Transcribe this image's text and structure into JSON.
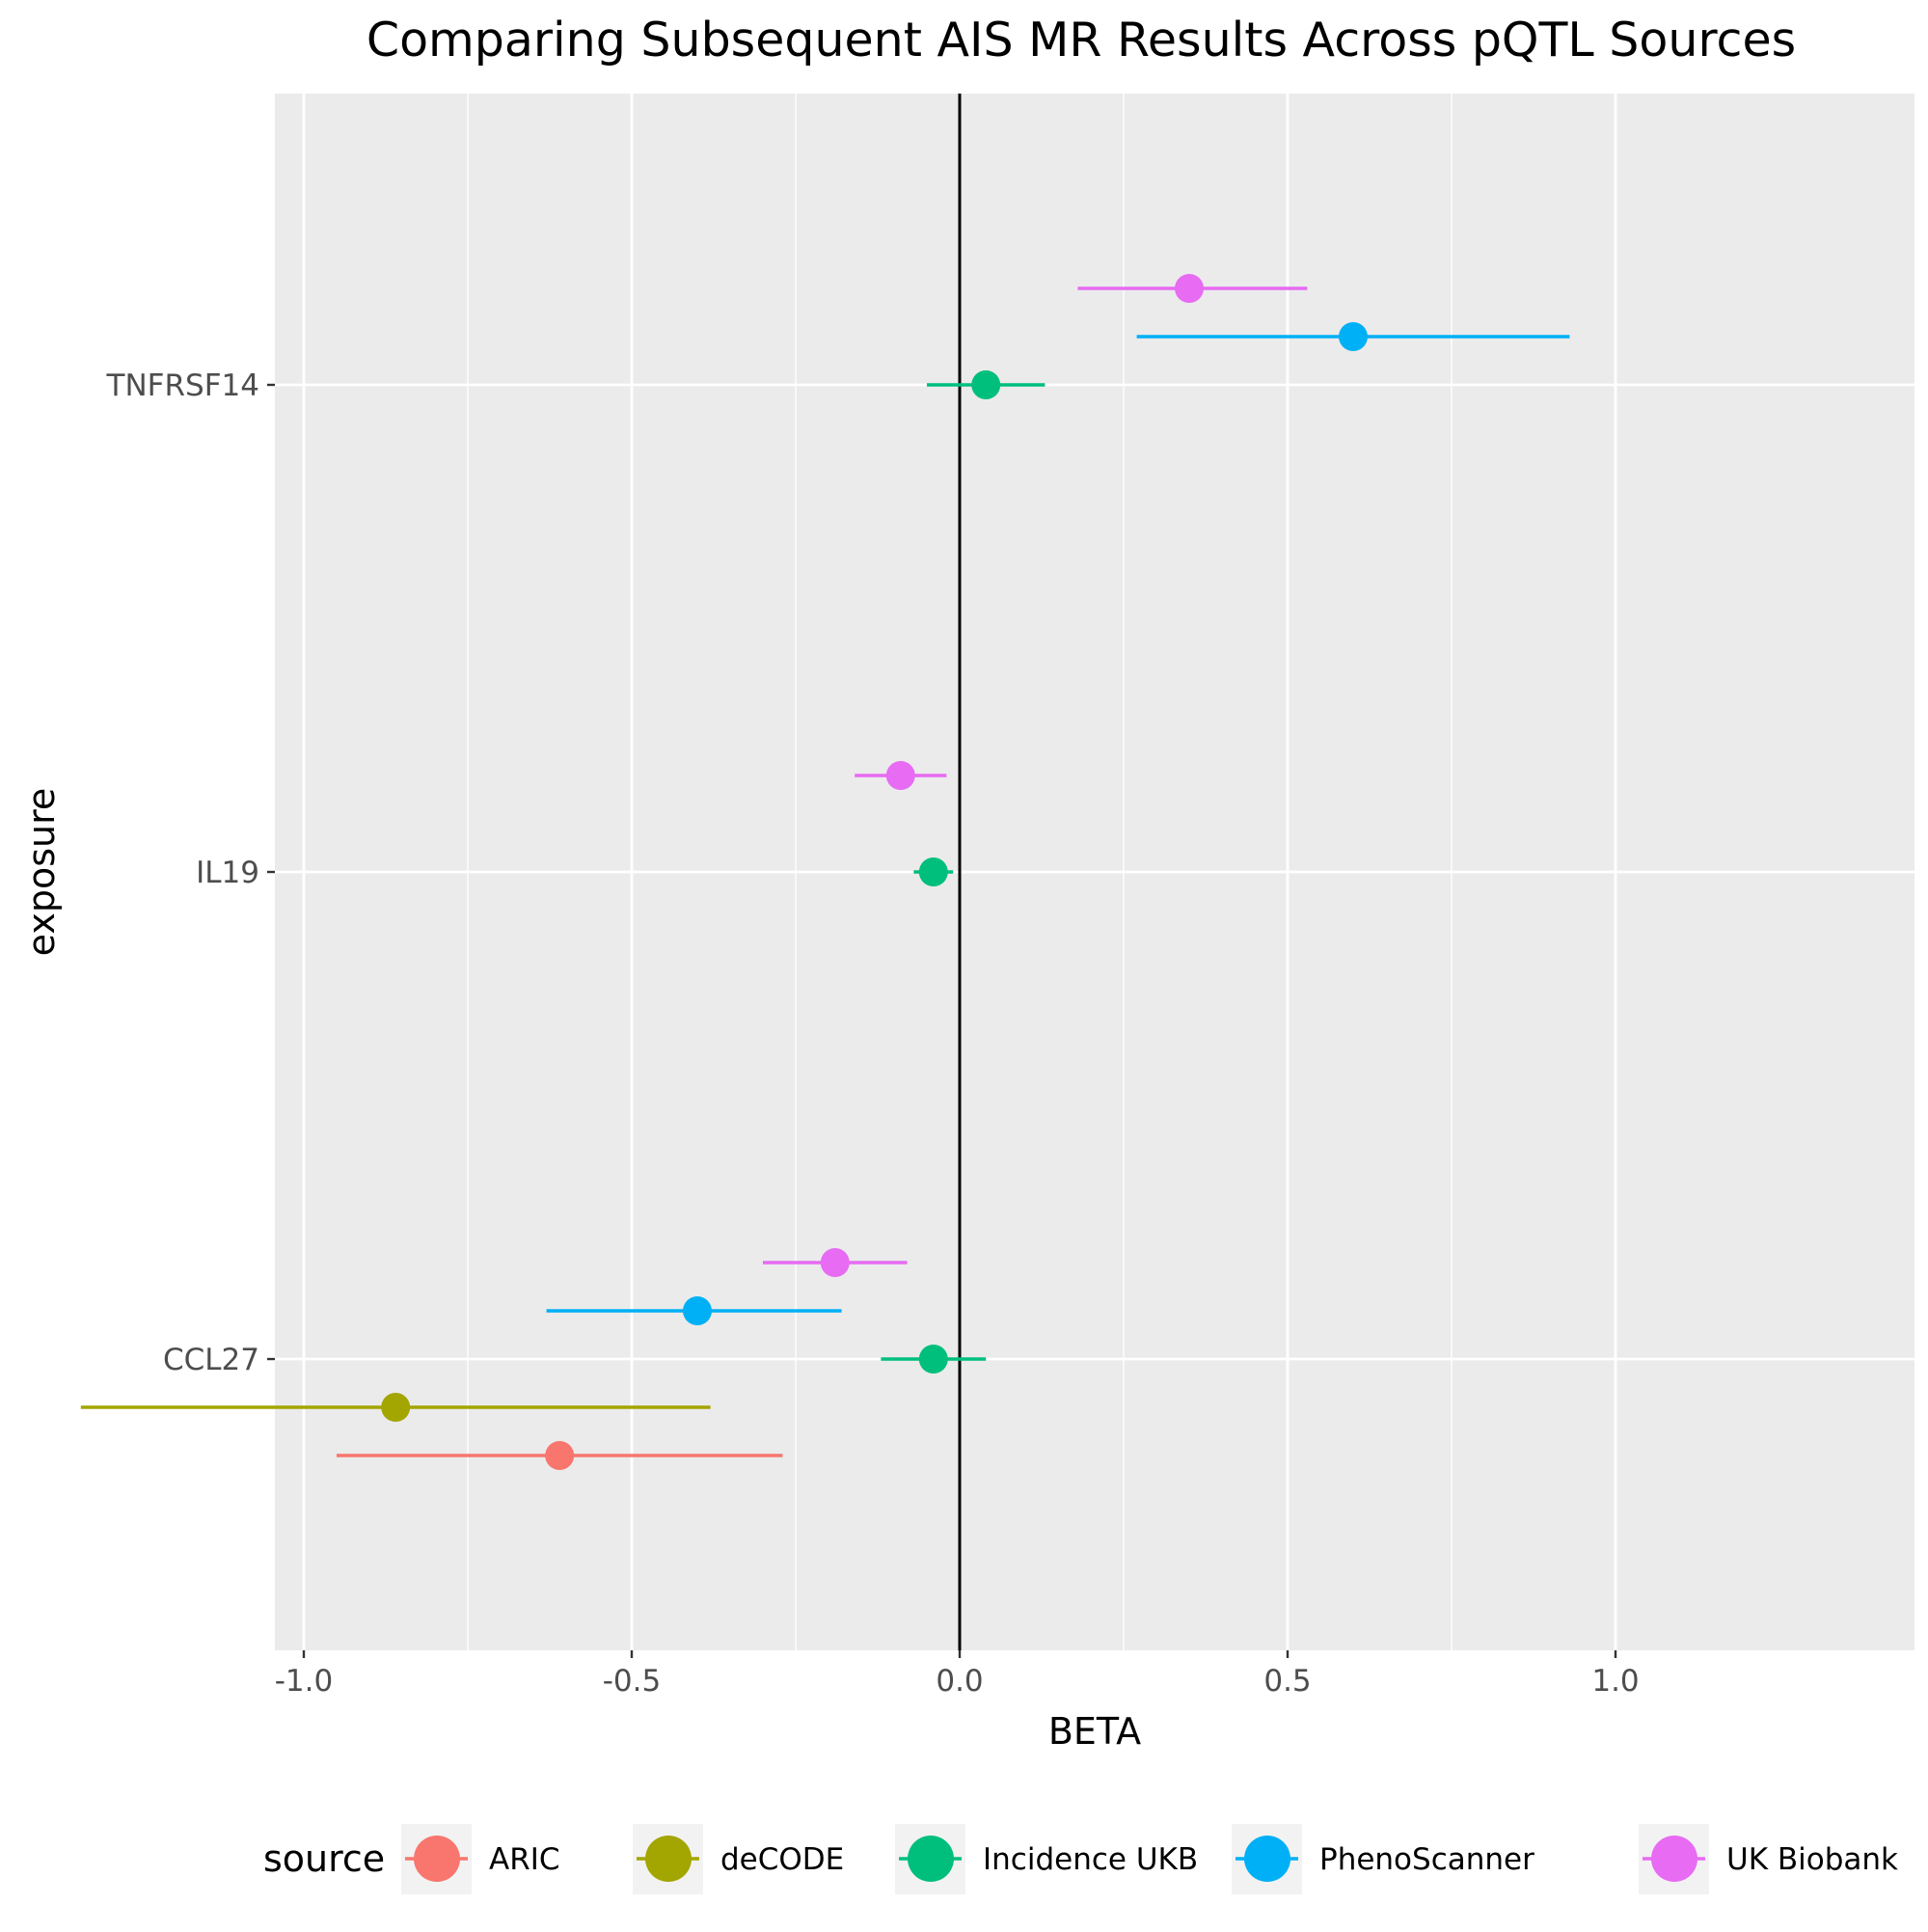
{
  "chart_data": {
    "type": "forest",
    "title": "Comparing Subsequent AIS MR Results Across pQTL Sources",
    "xlabel": "BETA",
    "ylabel": "exposure",
    "xlim": [
      -1.45,
      1.05
    ],
    "x_ticks": [
      "-1.0",
      "-0.5",
      "0.0",
      "0.5",
      "1.0"
    ],
    "x_tick_values": [
      -1.0,
      -0.5,
      0.0,
      0.5,
      1.0
    ],
    "reference_line_x": 0,
    "categories": [
      "CCL27",
      "IL19",
      "TNFRSF14"
    ],
    "grid": true,
    "legend": {
      "title": "source",
      "placement": "bottom"
    },
    "series": [
      {
        "name": "ARIC",
        "color": "#F8766D",
        "points": [
          {
            "exposure": "CCL27",
            "beta": -0.61,
            "lo": -0.95,
            "hi": -0.27
          }
        ]
      },
      {
        "name": "deCODE",
        "color": "#A3A500",
        "points": [
          {
            "exposure": "CCL27",
            "beta": -0.86,
            "lo": -1.34,
            "hi": -0.38
          }
        ]
      },
      {
        "name": "Incidence UKB",
        "color": "#00BF7D",
        "points": [
          {
            "exposure": "CCL27",
            "beta": -0.04,
            "lo": -0.12,
            "hi": 0.04
          },
          {
            "exposure": "IL19",
            "beta": -0.04,
            "lo": -0.07,
            "hi": -0.01
          },
          {
            "exposure": "TNFRSF14",
            "beta": 0.04,
            "lo": -0.05,
            "hi": 0.13
          }
        ]
      },
      {
        "name": "PhenoScanner",
        "color": "#00B0F6",
        "points": [
          {
            "exposure": "CCL27",
            "beta": -0.4,
            "lo": -0.63,
            "hi": -0.18
          },
          {
            "exposure": "TNFRSF14",
            "beta": 0.6,
            "lo": 0.27,
            "hi": 0.93
          }
        ]
      },
      {
        "name": "UK Biobank",
        "color": "#E76BF3",
        "points": [
          {
            "exposure": "CCL27",
            "beta": -0.19,
            "lo": -0.3,
            "hi": -0.08
          },
          {
            "exposure": "IL19",
            "beta": -0.09,
            "lo": -0.16,
            "hi": -0.02
          },
          {
            "exposure": "TNFRSF14",
            "beta": 0.35,
            "lo": 0.18,
            "hi": 0.53
          }
        ]
      }
    ]
  }
}
